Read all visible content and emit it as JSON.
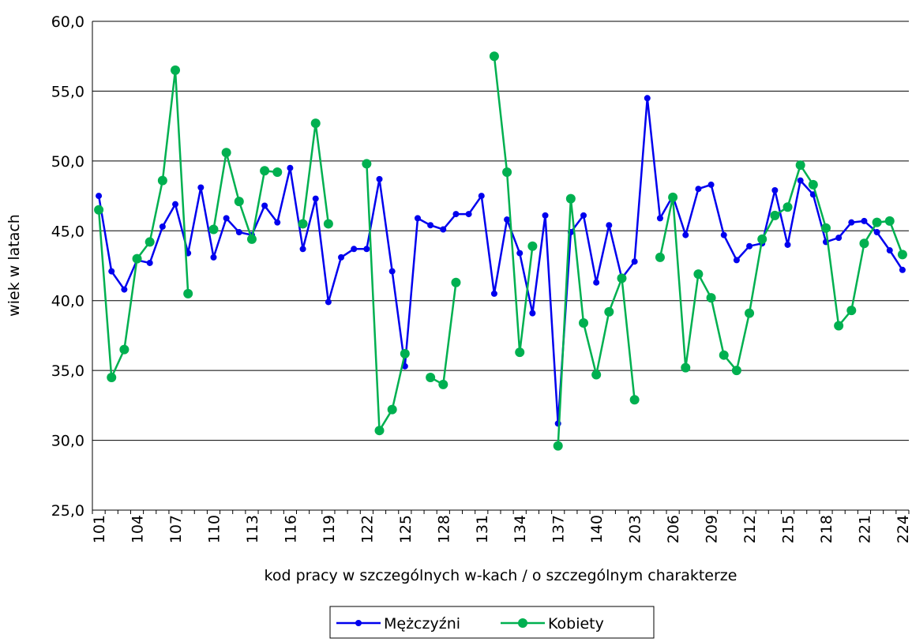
{
  "chart_data": {
    "type": "line",
    "x_label": "kod pracy w szczególnych w-kach / o szczególnym charakterze",
    "y_label": "wiek w latach",
    "categories": [
      "101",
      null,
      null,
      "104",
      null,
      null,
      "107",
      null,
      null,
      "110",
      null,
      null,
      "113",
      null,
      null,
      "116",
      null,
      null,
      "119",
      null,
      null,
      "122",
      null,
      null,
      "125",
      null,
      null,
      "128",
      null,
      null,
      "131",
      null,
      null,
      "134",
      null,
      null,
      "137",
      null,
      null,
      "140",
      null,
      null,
      "203",
      null,
      null,
      "206",
      null,
      null,
      "209",
      null,
      null,
      "212",
      null,
      null,
      "215",
      null,
      null,
      "218",
      null,
      null,
      "221",
      null,
      null,
      "224"
    ],
    "series": [
      {
        "name": "Mężczyźni",
        "color": "#0000ee",
        "values": [
          47.5,
          42.1,
          40.8,
          42.9,
          42.7,
          45.3,
          46.9,
          43.4,
          48.1,
          43.1,
          45.9,
          44.9,
          44.7,
          46.8,
          45.6,
          49.5,
          43.7,
          47.3,
          39.9,
          43.1,
          43.7,
          43.7,
          48.7,
          42.1,
          35.3,
          45.9,
          45.4,
          45.1,
          46.2,
          46.2,
          47.5,
          40.5,
          45.8,
          43.4,
          39.1,
          46.1,
          31.2,
          44.9,
          46.1,
          41.3,
          45.4,
          41.6,
          42.8,
          54.5,
          45.9,
          47.5,
          44.7,
          48.0,
          48.3,
          44.7,
          42.9,
          43.9,
          44.1,
          47.9,
          44.0,
          48.6,
          47.6,
          44.2,
          44.5,
          45.6,
          45.7,
          44.9,
          43.6,
          42.2
        ]
      },
      {
        "name": "Kobiety",
        "color": "#00b050",
        "values": [
          46.5,
          34.5,
          36.5,
          43.0,
          44.2,
          48.6,
          56.5,
          40.5,
          null,
          45.1,
          50.6,
          47.1,
          44.4,
          49.3,
          49.2,
          null,
          45.5,
          52.7,
          45.5,
          null,
          null,
          49.8,
          30.7,
          32.2,
          36.2,
          null,
          34.5,
          34.0,
          41.3,
          null,
          null,
          57.5,
          49.2,
          36.3,
          43.9,
          null,
          29.6,
          47.3,
          38.4,
          34.7,
          39.2,
          41.6,
          32.9,
          null,
          43.1,
          47.4,
          35.2,
          41.9,
          40.2,
          36.1,
          35.0,
          39.1,
          44.4,
          46.1,
          46.7,
          49.7,
          48.3,
          45.2,
          38.2,
          39.3,
          44.1,
          45.6,
          45.7,
          43.3
        ]
      }
    ],
    "ylim": [
      25,
      60
    ],
    "yticks": [
      {
        "value": 25,
        "label": "25,0"
      },
      {
        "value": 30,
        "label": "30,0"
      },
      {
        "value": 35,
        "label": "35,0"
      },
      {
        "value": 40,
        "label": "40,0"
      },
      {
        "value": 45,
        "label": "45,0"
      },
      {
        "value": 50,
        "label": "50,0"
      },
      {
        "value": 55,
        "label": "55,0"
      },
      {
        "value": 60,
        "label": "60,0"
      }
    ],
    "grid": true,
    "legend": "bottom"
  }
}
